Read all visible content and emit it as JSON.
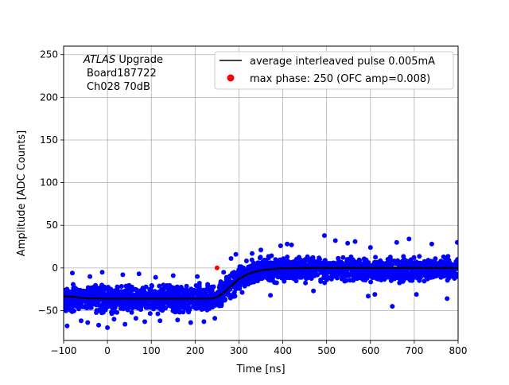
{
  "chart_data": {
    "type": "scatter",
    "xlabel": "Time [ns]",
    "ylabel": "Amplitude [ADC Counts]",
    "xlim": [
      -100,
      800
    ],
    "ylim": [
      -85,
      260
    ],
    "xticks": [
      -100,
      0,
      100,
      200,
      300,
      400,
      500,
      600,
      700,
      800
    ],
    "yticks": [
      -50,
      0,
      50,
      100,
      150,
      200,
      250
    ],
    "xtick_labels": [
      "−100",
      "0",
      "100",
      "200",
      "300",
      "400",
      "500",
      "600",
      "700",
      "800"
    ],
    "ytick_labels": [
      "−50",
      "0",
      "50",
      "100",
      "150",
      "200",
      "250"
    ],
    "grid": true,
    "legend_position": "top-right",
    "annotation": {
      "line1_italic": "ATLAS",
      "line1_rest": " Upgrade",
      "line2": "Board187722",
      "line3": "Ch028 70dB"
    },
    "series": [
      {
        "name": "average interleaved pulse 0.005mA",
        "kind": "line",
        "color": "#000000",
        "x": [
          -100,
          -50,
          0,
          50,
          100,
          150,
          200,
          240,
          260,
          280,
          300,
          320,
          340,
          360,
          380,
          400,
          450,
          500,
          550,
          600,
          650,
          700,
          750,
          800
        ],
        "y": [
          -33,
          -35.5,
          -36,
          -36,
          -36,
          -36,
          -36,
          -36,
          -31,
          -22,
          -13,
          -7,
          -4,
          -2,
          -1,
          -0.5,
          0,
          0,
          0,
          0,
          0,
          0,
          0,
          0
        ]
      },
      {
        "name": "max phase: 250 (OFC amp=0.008)",
        "kind": "points",
        "color": "#ff0000",
        "x": [
          250
        ],
        "y": [
          0.008
        ]
      },
      {
        "kind": "scatter_band",
        "color": "#0000ff",
        "x": [
          -100,
          240,
          260,
          300,
          340,
          380,
          800
        ],
        "y_low": [
          -58,
          -58,
          -52,
          -35,
          -22,
          -20,
          -20
        ],
        "y_high": [
          -15,
          -15,
          -10,
          8,
          15,
          17,
          17
        ],
        "outliers": [
          [
            -92,
            -68
          ],
          [
            -60,
            -62
          ],
          [
            -45,
            -64
          ],
          [
            -20,
            -67
          ],
          [
            0,
            -70
          ],
          [
            15,
            -60
          ],
          [
            40,
            -66
          ],
          [
            65,
            -59
          ],
          [
            85,
            -63
          ],
          [
            120,
            -62
          ],
          [
            160,
            -61
          ],
          [
            190,
            -64
          ],
          [
            220,
            -63
          ],
          [
            245,
            -59
          ],
          [
            -80,
            -6
          ],
          [
            -40,
            -10
          ],
          [
            -12,
            -5
          ],
          [
            35,
            -8
          ],
          [
            72,
            -7
          ],
          [
            110,
            -11
          ],
          [
            150,
            -9
          ],
          [
            205,
            -10
          ],
          [
            265,
            -5
          ],
          [
            275,
            -30
          ],
          [
            282,
            11
          ],
          [
            293,
            16
          ],
          [
            330,
            17
          ],
          [
            350,
            21
          ],
          [
            372,
            -32
          ],
          [
            395,
            26
          ],
          [
            410,
            28
          ],
          [
            420,
            27
          ],
          [
            470,
            -27
          ],
          [
            495,
            38
          ],
          [
            520,
            32
          ],
          [
            548,
            29
          ],
          [
            565,
            31
          ],
          [
            595,
            -33
          ],
          [
            600,
            24
          ],
          [
            610,
            -31
          ],
          [
            650,
            -45
          ],
          [
            660,
            30
          ],
          [
            688,
            34
          ],
          [
            705,
            -31
          ],
          [
            740,
            28
          ],
          [
            775,
            -36
          ],
          [
            798,
            30
          ]
        ]
      }
    ]
  }
}
